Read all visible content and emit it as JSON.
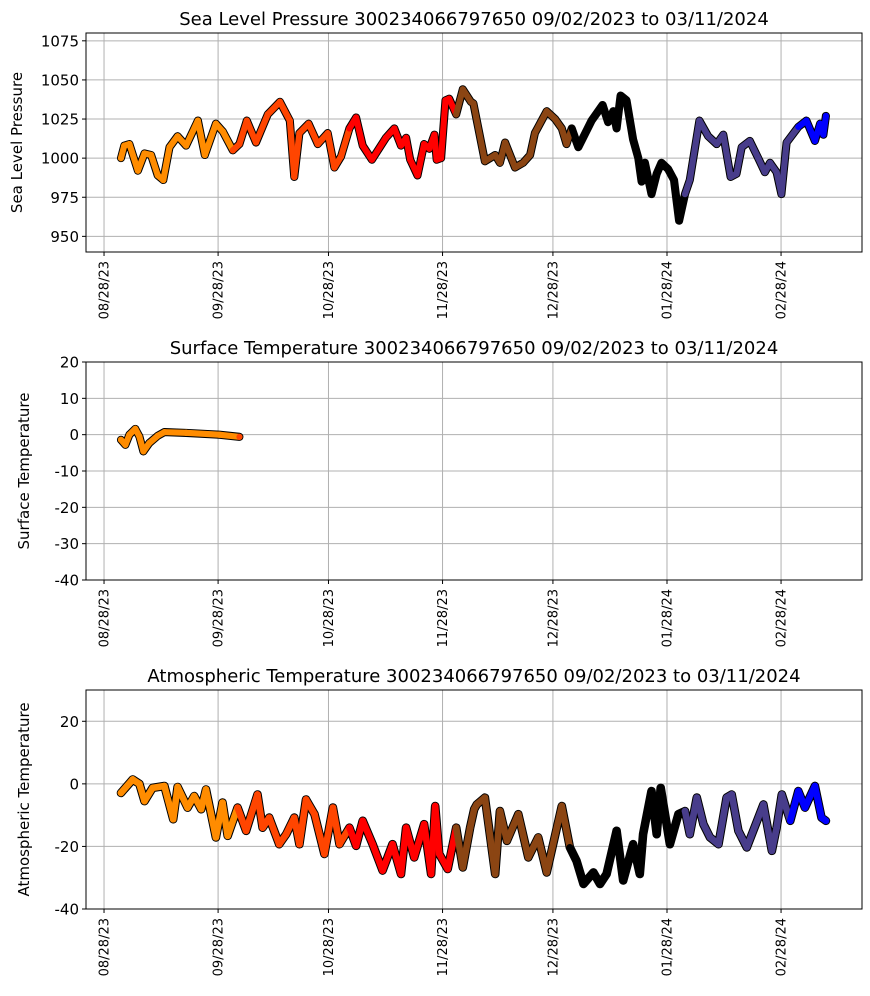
{
  "chart_data": [
    {
      "type": "scatter",
      "title": "Sea Level Pressure 300234066797650  09/02/2023 to 03/11/2024",
      "ylabel": "Sea Level Pressure",
      "xlabel": "",
      "x_unit": "days since 08/28/23",
      "xlim": [
        -4.9,
        206
      ],
      "ylim": [
        940,
        1080
      ],
      "yticks": [
        950,
        975,
        1000,
        1025,
        1050,
        1075
      ],
      "xticks": [
        {
          "day": 0,
          "label": "08/28/23"
        },
        {
          "day": 31,
          "label": "09/28/23"
        },
        {
          "day": 61,
          "label": "10/28/23"
        },
        {
          "day": 92,
          "label": "11/28/23"
        },
        {
          "day": 122,
          "label": "12/28/23"
        },
        {
          "day": 153,
          "label": "01/28/24"
        },
        {
          "day": 184,
          "label": "02/28/24"
        }
      ],
      "grid": true,
      "points": [
        [
          4.6,
          1000
        ],
        [
          5.5,
          1008
        ],
        [
          6.9,
          1009
        ],
        [
          9.2,
          992
        ],
        [
          11.0,
          1003
        ],
        [
          12.8,
          1002
        ],
        [
          14.6,
          989
        ],
        [
          16.1,
          986
        ],
        [
          17.8,
          1007
        ],
        [
          20.0,
          1014
        ],
        [
          22.3,
          1008
        ],
        [
          25.5,
          1024
        ],
        [
          27.4,
          1002
        ],
        [
          30.4,
          1022
        ],
        [
          32.3,
          1017
        ],
        [
          35.0,
          1005
        ],
        [
          36.8,
          1009
        ],
        [
          38.8,
          1024
        ],
        [
          41.3,
          1010
        ],
        [
          44.5,
          1028
        ],
        [
          47.8,
          1036
        ],
        [
          50.5,
          1024
        ],
        [
          51.7,
          988
        ],
        [
          53.1,
          1016
        ],
        [
          55.6,
          1022
        ],
        [
          58.1,
          1009
        ],
        [
          60.8,
          1016
        ],
        [
          62.6,
          994
        ],
        [
          64.4,
          1001
        ],
        [
          66.7,
          1019
        ],
        [
          68.5,
          1026
        ],
        [
          70.3,
          1008
        ],
        [
          72.8,
          999
        ],
        [
          76.6,
          1013
        ],
        [
          78.9,
          1019
        ],
        [
          80.7,
          1008
        ],
        [
          82.1,
          1013
        ],
        [
          83.2,
          999
        ],
        [
          85.2,
          989
        ],
        [
          87.0,
          1009
        ],
        [
          88.4,
          1006
        ],
        [
          89.8,
          1015
        ],
        [
          90.4,
          999
        ],
        [
          91.6,
          1000
        ],
        [
          92.8,
          1037
        ],
        [
          93.8,
          1038
        ],
        [
          95.7,
          1028
        ],
        [
          97.5,
          1044
        ],
        [
          99.7,
          1036
        ],
        [
          100.4,
          1035
        ],
        [
          103.5,
          998
        ],
        [
          106.3,
          1002
        ],
        [
          107.6,
          997
        ],
        [
          109.0,
          1010
        ],
        [
          111.7,
          994
        ],
        [
          113.9,
          997
        ],
        [
          115.8,
          1002
        ],
        [
          117.1,
          1016
        ],
        [
          120.3,
          1030
        ],
        [
          122.6,
          1025
        ],
        [
          124.4,
          1019
        ],
        [
          125.7,
          1009
        ],
        [
          127.1,
          1019
        ],
        [
          128.9,
          1007
        ],
        [
          132.5,
          1024
        ],
        [
          135.5,
          1034
        ],
        [
          137.0,
          1023
        ],
        [
          138.4,
          1030
        ],
        [
          139.3,
          1019
        ],
        [
          140.4,
          1040
        ],
        [
          142.0,
          1037
        ],
        [
          143.8,
          1012
        ],
        [
          145.2,
          1000
        ],
        [
          146.1,
          985
        ],
        [
          147.0,
          997
        ],
        [
          148.8,
          977
        ],
        [
          150.2,
          990
        ],
        [
          151.5,
          997
        ],
        [
          153.3,
          993
        ],
        [
          154.9,
          986
        ],
        [
          156.3,
          960
        ],
        [
          157.9,
          977
        ],
        [
          159.2,
          986
        ],
        [
          161.8,
          1024
        ],
        [
          164.2,
          1014
        ],
        [
          166.5,
          1009
        ],
        [
          168.3,
          1015
        ],
        [
          170.3,
          988
        ],
        [
          171.9,
          990
        ],
        [
          173.3,
          1007
        ],
        [
          175.5,
          1011
        ],
        [
          177.8,
          1000
        ],
        [
          179.6,
          991
        ],
        [
          181.0,
          997
        ],
        [
          182.8,
          991
        ],
        [
          184.1,
          977
        ],
        [
          185.5,
          1010
        ],
        [
          188.7,
          1020
        ],
        [
          190.9,
          1024
        ],
        [
          193.2,
          1011
        ],
        [
          194.6,
          1022
        ],
        [
          195.5,
          1015
        ],
        [
          196.2,
          1027
        ]
      ]
    },
    {
      "type": "scatter",
      "title": "Surface Temperature 300234066797650  09/02/2023 to 03/11/2024",
      "ylabel": "Surface Temperature",
      "xlabel": "",
      "x_unit": "days since 08/28/23",
      "xlim": [
        -4.9,
        206
      ],
      "ylim": [
        -40,
        20
      ],
      "yticks": [
        -40,
        -30,
        -20,
        -10,
        0,
        10,
        20
      ],
      "xticks": [
        {
          "day": 0,
          "label": "08/28/23"
        },
        {
          "day": 31,
          "label": "09/28/23"
        },
        {
          "day": 61,
          "label": "10/28/23"
        },
        {
          "day": 92,
          "label": "11/28/23"
        },
        {
          "day": 122,
          "label": "12/28/23"
        },
        {
          "day": 153,
          "label": "01/28/24"
        },
        {
          "day": 184,
          "label": "02/28/24"
        }
      ],
      "grid": true,
      "points": [
        [
          4.6,
          -1.4
        ],
        [
          5.8,
          -2.8
        ],
        [
          6.9,
          0
        ],
        [
          8.5,
          1.6
        ],
        [
          9.6,
          -0.5
        ],
        [
          10.7,
          -4.6
        ],
        [
          12.3,
          -2.3
        ],
        [
          14.6,
          -0.3
        ],
        [
          16.4,
          0.7
        ],
        [
          22.3,
          0.5
        ],
        [
          31.3,
          0.0
        ],
        [
          36.8,
          -0.6
        ]
      ]
    },
    {
      "type": "scatter",
      "title": "Atmospheric Temperature 300234066797650  09/02/2023 to 03/11/2024",
      "ylabel": "Atmospheric Temperature",
      "xlabel": "",
      "x_unit": "days since 08/28/23",
      "xlim": [
        -4.9,
        206
      ],
      "ylim": [
        -40,
        30
      ],
      "yticks": [
        -40,
        -20,
        0,
        20
      ],
      "xticks": [
        {
          "day": 0,
          "label": "08/28/23"
        },
        {
          "day": 31,
          "label": "09/28/23"
        },
        {
          "day": 61,
          "label": "10/28/23"
        },
        {
          "day": 92,
          "label": "11/28/23"
        },
        {
          "day": 122,
          "label": "12/28/23"
        },
        {
          "day": 153,
          "label": "01/28/24"
        },
        {
          "day": 184,
          "label": "02/28/24"
        }
      ],
      "grid": true,
      "points": [
        [
          4.6,
          -2.9
        ],
        [
          7.8,
          1.4
        ],
        [
          9.6,
          0
        ],
        [
          11.0,
          -5.5
        ],
        [
          13.2,
          -1.3
        ],
        [
          16.4,
          -0.7
        ],
        [
          18.8,
          -11.3
        ],
        [
          20.0,
          -1.0
        ],
        [
          22.7,
          -7.6
        ],
        [
          24.5,
          -3.9
        ],
        [
          26.4,
          -8.1
        ],
        [
          27.7,
          -1.8
        ],
        [
          30.4,
          -17.1
        ],
        [
          32.2,
          -6.0
        ],
        [
          33.6,
          -16.6
        ],
        [
          36.3,
          -7.6
        ],
        [
          38.6,
          -15.0
        ],
        [
          41.7,
          -3.4
        ],
        [
          43.1,
          -14
        ],
        [
          44.9,
          -10.8
        ],
        [
          47.6,
          -19.3
        ],
        [
          49.5,
          -16.1
        ],
        [
          51.7,
          -10.8
        ],
        [
          53.1,
          -19.3
        ],
        [
          54.9,
          -5.0
        ],
        [
          57.2,
          -9.7
        ],
        [
          59.9,
          -22.4
        ],
        [
          62.2,
          -7.6
        ],
        [
          64.0,
          -19.3
        ],
        [
          66.7,
          -14
        ],
        [
          68.5,
          -19.8
        ],
        [
          70.3,
          -11.8
        ],
        [
          73.0,
          -19.3
        ],
        [
          75.7,
          -27.7
        ],
        [
          78.4,
          -19.3
        ],
        [
          80.7,
          -28.8
        ],
        [
          82.1,
          -14
        ],
        [
          84.3,
          -23.5
        ],
        [
          87.0,
          -12.9
        ],
        [
          88.9,
          -28.8
        ],
        [
          90.0,
          -7.1
        ],
        [
          91.1,
          -22.4
        ],
        [
          93.4,
          -27.2
        ],
        [
          95.7,
          -14
        ],
        [
          97.5,
          -26.7
        ],
        [
          99.5,
          -14
        ],
        [
          100.6,
          -8.1
        ],
        [
          101.3,
          -6.6
        ],
        [
          103.5,
          -4.4
        ],
        [
          106.3,
          -28.8
        ],
        [
          107.6,
          -8.7
        ],
        [
          109.5,
          -18.2
        ],
        [
          112.6,
          -9.7
        ],
        [
          115.3,
          -23.5
        ],
        [
          118.0,
          -17.1
        ],
        [
          120.3,
          -28.3
        ],
        [
          124.4,
          -7.1
        ],
        [
          126.6,
          -20.3
        ],
        [
          128.4,
          -24.6
        ],
        [
          130.3,
          -32
        ],
        [
          133.0,
          -28.3
        ],
        [
          134.8,
          -32
        ],
        [
          136.6,
          -28.8
        ],
        [
          139.3,
          -15
        ],
        [
          141.1,
          -30.9
        ],
        [
          143.8,
          -19.3
        ],
        [
          145.6,
          -28.8
        ],
        [
          146.5,
          -16.1
        ],
        [
          148.8,
          -2.3
        ],
        [
          150.2,
          -16.1
        ],
        [
          151.3,
          -1.3
        ],
        [
          153.8,
          -19.3
        ],
        [
          156.1,
          -9.7
        ],
        [
          157.9,
          -8.7
        ],
        [
          159.2,
          -16.1
        ],
        [
          161.1,
          -4.4
        ],
        [
          162.9,
          -12.9
        ],
        [
          164.7,
          -17.1
        ],
        [
          167.0,
          -19.3
        ],
        [
          169.2,
          -4.4
        ],
        [
          170.6,
          -3.4
        ],
        [
          172.4,
          -15
        ],
        [
          174.7,
          -20.3
        ],
        [
          179.2,
          -6.6
        ],
        [
          181.5,
          -21.4
        ],
        [
          182.8,
          -14
        ],
        [
          184.2,
          -3.4
        ],
        [
          186.5,
          -11.8
        ],
        [
          188.7,
          -2.3
        ],
        [
          190.5,
          -7.6
        ],
        [
          193.2,
          -0.7
        ],
        [
          195.0,
          -10.8
        ],
        [
          196.2,
          -11.8
        ]
      ]
    }
  ],
  "color_segments": [
    {
      "from_day": 0,
      "color": "#ff8c00"
    },
    {
      "from_day": 34,
      "color": "#ff4500"
    },
    {
      "from_day": 65,
      "color": "#ff0000"
    },
    {
      "from_day": 95,
      "color": "#8b4513"
    },
    {
      "from_day": 126,
      "color": "#000000"
    },
    {
      "from_day": 157,
      "color": "#483d8b"
    },
    {
      "from_day": 186,
      "color": "#0000ff"
    }
  ]
}
